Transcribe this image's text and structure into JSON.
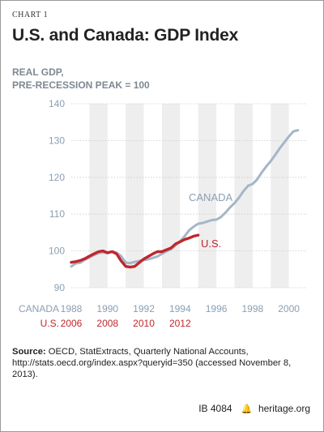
{
  "chart_label": "CHART 1",
  "chart_data": {
    "type": "line",
    "title": "U.S. and Canada: GDP Index",
    "ylabel_lines": [
      "REAL GDP,",
      "PRE-RECESSION PEAK = 100"
    ],
    "ylim": [
      90,
      140
    ],
    "yticks": [
      90,
      100,
      110,
      120,
      130,
      140
    ],
    "x_quarter_range": [
      0,
      52
    ],
    "axis_rows": [
      {
        "name": "CANADA",
        "color": "#8a9fb4",
        "ticks": [
          {
            "q": 0,
            "label": "1988"
          },
          {
            "q": 8,
            "label": "1990"
          },
          {
            "q": 16,
            "label": "1992"
          },
          {
            "q": 24,
            "label": "1994"
          },
          {
            "q": 32,
            "label": "1996"
          },
          {
            "q": 40,
            "label": "1998"
          },
          {
            "q": 48,
            "label": "2000"
          }
        ]
      },
      {
        "name": "U.S.",
        "color": "#c0262c",
        "ticks": [
          {
            "q": 0,
            "label": "2006"
          },
          {
            "q": 8,
            "label": "2008"
          },
          {
            "q": 16,
            "label": "2010"
          },
          {
            "q": 24,
            "label": "2012"
          }
        ]
      }
    ],
    "bands": [
      [
        4,
        8
      ],
      [
        12,
        16
      ],
      [
        20,
        24
      ],
      [
        28,
        32
      ],
      [
        36,
        40
      ],
      [
        44,
        48
      ]
    ],
    "series": [
      {
        "name": "CANADA",
        "color": "#a5b6c8",
        "values": [
          95.8,
          96.6,
          96.8,
          97.6,
          98.2,
          98.9,
          99.4,
          99.6,
          99.4,
          99.9,
          99.5,
          98.6,
          96.8,
          96.7,
          97.0,
          97.3,
          97.5,
          97.7,
          98.1,
          98.5,
          99.2,
          99.9,
          100.5,
          101.5,
          102.6,
          104.0,
          105.6,
          106.6,
          107.4,
          107.6,
          108.0,
          108.4,
          108.5,
          109.2,
          110.4,
          111.8,
          113.0,
          114.5,
          116.3,
          117.7,
          118.2,
          119.4,
          121.3,
          122.9,
          124.4,
          126.1,
          127.9,
          129.5,
          131.1,
          132.5,
          132.8
        ]
      },
      {
        "name": "U.S.",
        "color": "#c0262c",
        "values": [
          96.9,
          97.1,
          97.4,
          97.9,
          98.6,
          99.2,
          99.8,
          100.0,
          99.5,
          99.8,
          99.2,
          97.3,
          95.8,
          95.6,
          95.8,
          96.8,
          97.8,
          98.5,
          99.2,
          99.8,
          99.8,
          100.3,
          100.8,
          101.9,
          102.5,
          103.1,
          103.5,
          104.0,
          104.3
        ]
      }
    ],
    "annotations": [
      {
        "text": "CANADA",
        "series": "CANADA"
      },
      {
        "text": "U.S.",
        "series": "U.S."
      }
    ],
    "grid": true
  },
  "source_label": "Source:",
  "source_text": "OECD, StatExtracts, Quarterly National Accounts, http://stats.oecd.org/index.aspx?queryid=350 (accessed November 8, 2013).",
  "footer": {
    "id": "IB 4084",
    "bell_glyph": "🔔",
    "site": "heritage.org"
  }
}
